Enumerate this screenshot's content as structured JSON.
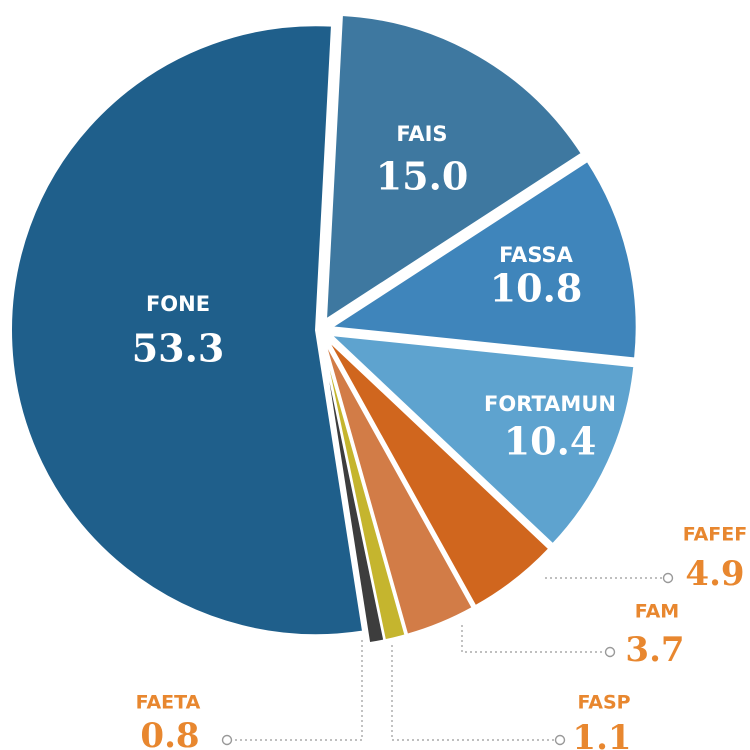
{
  "chart_data": {
    "type": "pie",
    "categories": [
      "FAIS",
      "FASSA",
      "FORTAMUN",
      "FAFEF",
      "FAM",
      "FASP",
      "FAETA",
      "FONE"
    ],
    "values": [
      15.0,
      10.8,
      10.4,
      4.9,
      3.7,
      1.1,
      0.8,
      53.3
    ],
    "value_labels": [
      "15.0",
      "10.8",
      "10.4",
      "4.9",
      "3.7",
      "1.1",
      "0.8",
      "53.3"
    ],
    "colors": [
      "#3e78a0",
      "#3f85bb",
      "#5ea3cf",
      "#d0661e",
      "#d27c47",
      "#c5b52e",
      "#3d3d3d",
      "#1f5f8b"
    ]
  }
}
